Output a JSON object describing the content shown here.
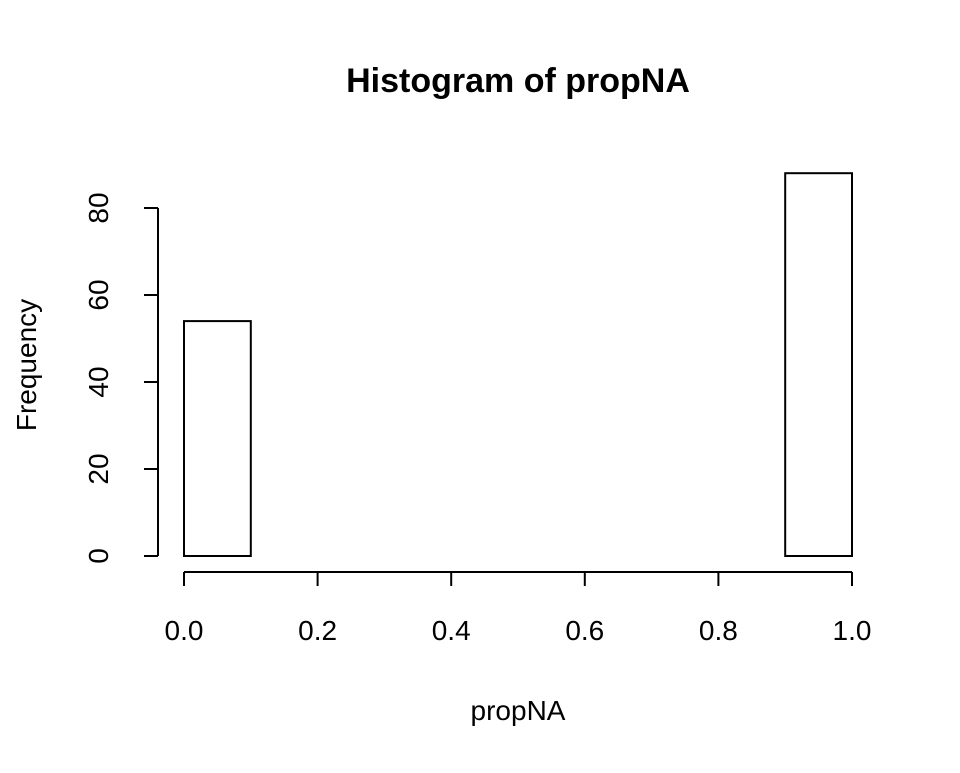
{
  "chart_data": {
    "type": "bar",
    "title": "Histogram of propNA",
    "xlabel": "propNA",
    "ylabel": "Frequency",
    "bins": [
      {
        "from": 0.0,
        "to": 0.1,
        "count": 54
      },
      {
        "from": 0.1,
        "to": 0.2,
        "count": 0
      },
      {
        "from": 0.2,
        "to": 0.3,
        "count": 0
      },
      {
        "from": 0.3,
        "to": 0.4,
        "count": 0
      },
      {
        "from": 0.4,
        "to": 0.5,
        "count": 0
      },
      {
        "from": 0.5,
        "to": 0.6,
        "count": 0
      },
      {
        "from": 0.6,
        "to": 0.7,
        "count": 0
      },
      {
        "from": 0.7,
        "to": 0.8,
        "count": 0
      },
      {
        "from": 0.8,
        "to": 0.9,
        "count": 0
      },
      {
        "from": 0.9,
        "to": 1.0,
        "count": 88
      }
    ],
    "xlim": [
      0.0,
      1.0
    ],
    "ylim": [
      0,
      88
    ],
    "xticks": [
      "0.0",
      "0.2",
      "0.4",
      "0.6",
      "0.8",
      "1.0"
    ],
    "yticks": [
      "0",
      "20",
      "40",
      "60",
      "80"
    ],
    "grid": false,
    "legend": "none"
  }
}
